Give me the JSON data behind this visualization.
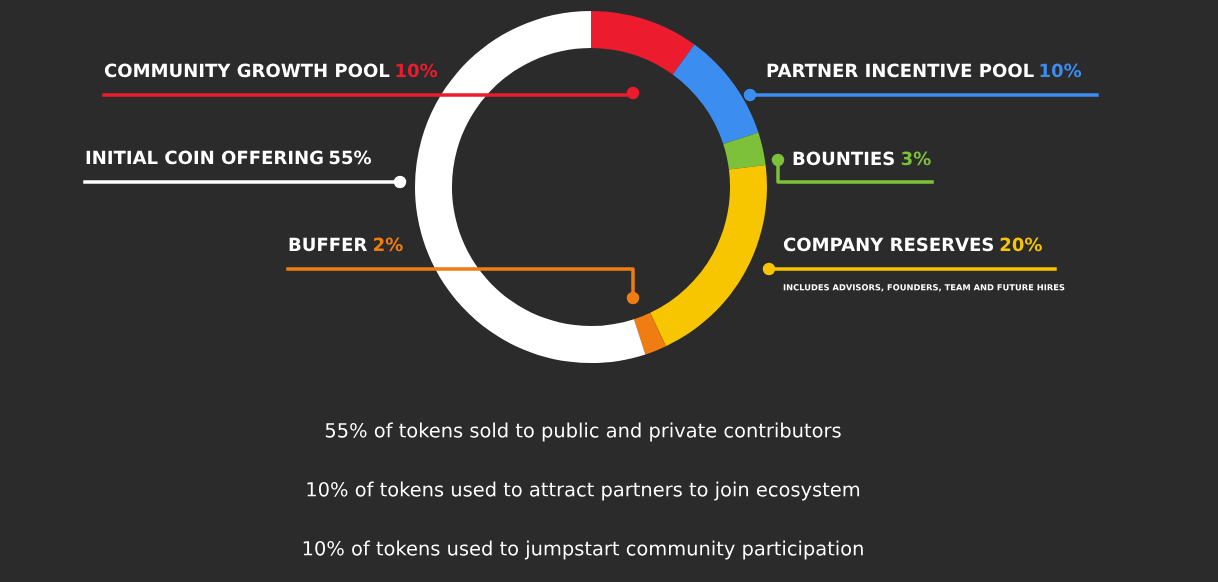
{
  "chart_data": {
    "type": "donut",
    "categories": [
      "COMMUNITY GROWTH POOL",
      "PARTNER INCENTIVE POOL",
      "BOUNTIES",
      "COMPANY RESERVES",
      "BUFFER",
      "INITIAL COIN OFFERING"
    ],
    "values": [
      10,
      10,
      3,
      20,
      2,
      55
    ],
    "colors": [
      "#ec1c2e",
      "#3b8ef0",
      "#7dc13a",
      "#f7c600",
      "#f07d12",
      "#ffffff"
    ],
    "value_labels": [
      "10%",
      "10%",
      "3%",
      "20%",
      "2%",
      "55%"
    ],
    "annotations": [
      "INCLUDES ADVISORS, FOUNDERS, TEAM AND FUTURE HIRES",
      "55% of tokens sold to public and private contributors",
      "10% of tokens used to attract partners to join ecosystem",
      "10% of tokens used to jumpstart community participation"
    ]
  }
}
